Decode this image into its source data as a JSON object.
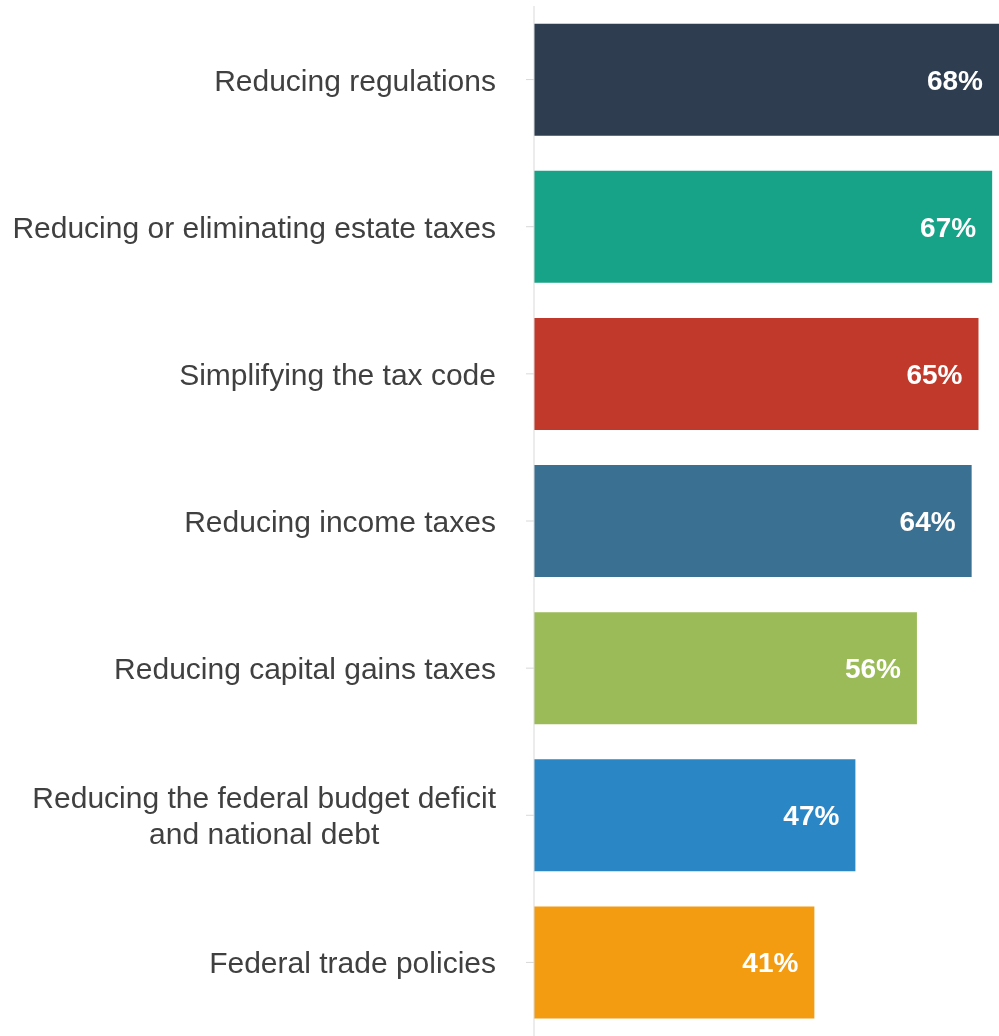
{
  "chart_data": {
    "type": "bar",
    "orientation": "horizontal",
    "categories": [
      "Reducing regulations",
      "Reducing or eliminating estate taxes",
      "Simplifying the tax code",
      "Reducing income taxes",
      "Reducing capital gains taxes",
      "Reducing the federal budget deficit and national debt",
      "Federal trade policies"
    ],
    "values": [
      68,
      67,
      65,
      64,
      56,
      47,
      41
    ],
    "value_labels": [
      "68%",
      "67%",
      "65%",
      "64%",
      "56%",
      "47%",
      "41%"
    ],
    "colors": [
      "#2e3e50",
      "#17a387",
      "#c0392b",
      "#3a7091",
      "#9bbb59",
      "#2a86c5",
      "#f39c12"
    ]
  }
}
